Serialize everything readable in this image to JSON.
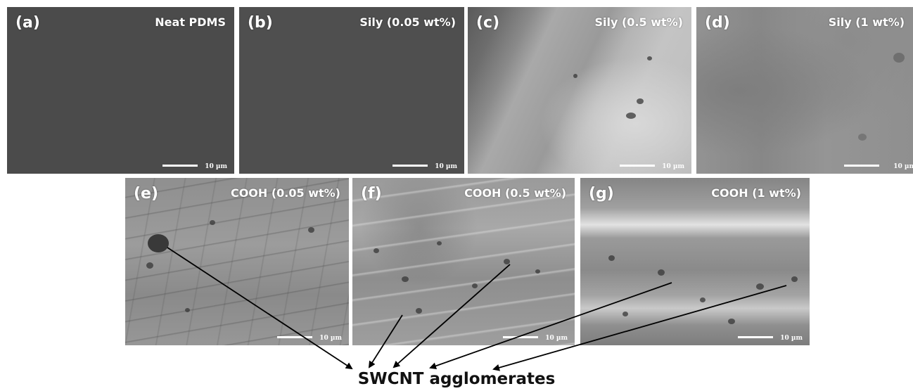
{
  "panels": [
    {
      "id": "a",
      "letter": "(a)",
      "title": "Neat PDMS",
      "scale": "10 µm"
    },
    {
      "id": "b",
      "letter": "(b)",
      "title": "Sily (0.05 wt%)",
      "scale": "10 µm"
    },
    {
      "id": "c",
      "letter": "(c)",
      "title": "Sily (0.5 wt%)",
      "scale": "10 µm"
    },
    {
      "id": "d",
      "letter": "(d)",
      "title": "Sily (1 wt%)",
      "scale": "10 µm"
    },
    {
      "id": "e",
      "letter": "(e)",
      "title": "COOH (0.05 wt%)",
      "scale": "10 µm"
    },
    {
      "id": "f",
      "letter": "(f)",
      "title": "COOH (0.5 wt%)",
      "scale": "10 µm"
    },
    {
      "id": "g",
      "letter": "(g)",
      "title": "COOH (1 wt%)",
      "scale": "10 µm"
    }
  ],
  "caption": "SWCNT agglomerates",
  "colors": {
    "label": "#ffffff",
    "arrow": "#000000",
    "background": "#ffffff"
  }
}
